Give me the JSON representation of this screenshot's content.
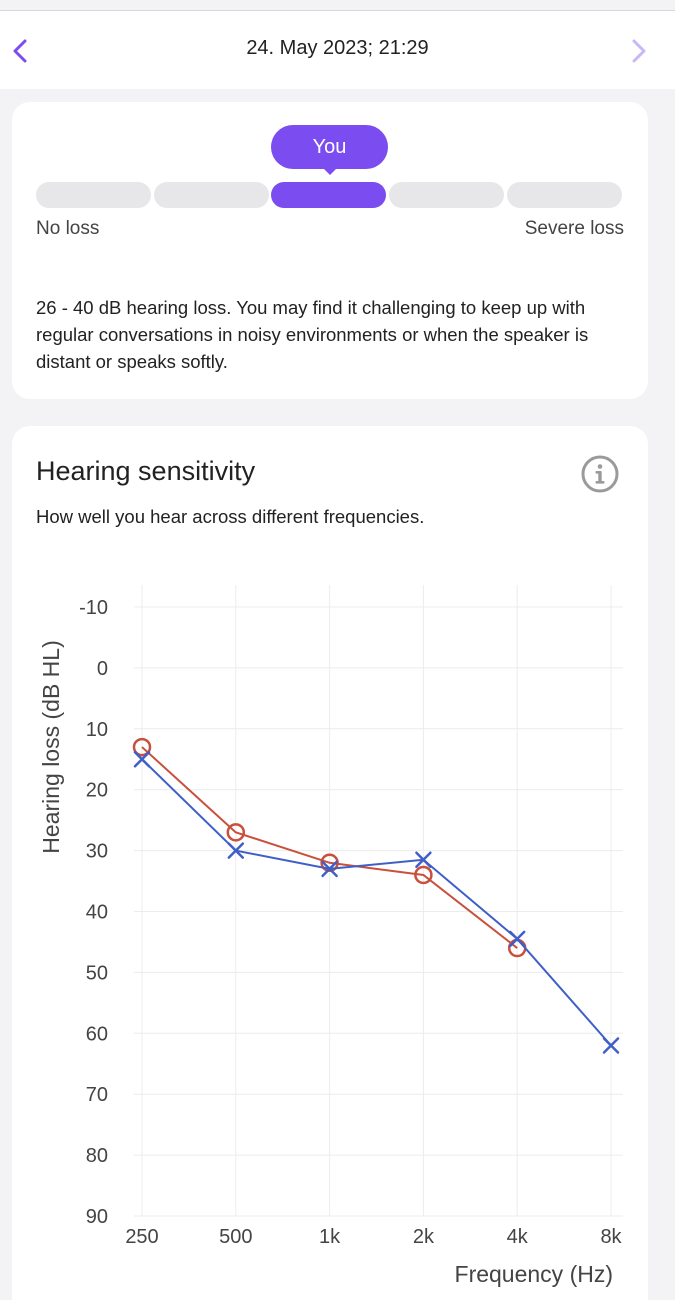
{
  "header": {
    "title": "24. May 2023; 21:29",
    "colors": {
      "accent": "#7b4cf0",
      "disabled": "#c9b8f7"
    }
  },
  "result": {
    "badge": "You",
    "segments": 5,
    "active_segment": 3,
    "scale_min_label": "No loss",
    "scale_max_label": "Severe loss",
    "description": "26 - 40 dB hearing loss. You may find it challenging to keep up with regular conversations in noisy environments or when the speaker is distant or speaks softly."
  },
  "sensitivity": {
    "title": "Hearing sensitivity",
    "subtitle": "How well you hear across different frequencies.",
    "info_icon": "info-icon"
  },
  "chart_data": {
    "type": "line",
    "title": "",
    "xlabel": "Frequency (Hz)",
    "ylabel": "Hearing loss (dB HL)",
    "categories": [
      "250",
      "500",
      "1k",
      "2k",
      "4k",
      "8k"
    ],
    "yticks": [
      "-10",
      "0",
      "10",
      "20",
      "30",
      "40",
      "50",
      "60",
      "70",
      "80",
      "90"
    ],
    "ylim": [
      -10,
      90
    ],
    "y_inverted": true,
    "grid": true,
    "legend": "none",
    "series": [
      {
        "marker": "circle",
        "color": "#c9503c",
        "values": [
          13,
          27,
          32,
          34,
          46,
          null
        ]
      },
      {
        "marker": "cross",
        "color": "#3f5fc8",
        "values": [
          15,
          30,
          33,
          31.5,
          44.5,
          62
        ]
      }
    ]
  }
}
